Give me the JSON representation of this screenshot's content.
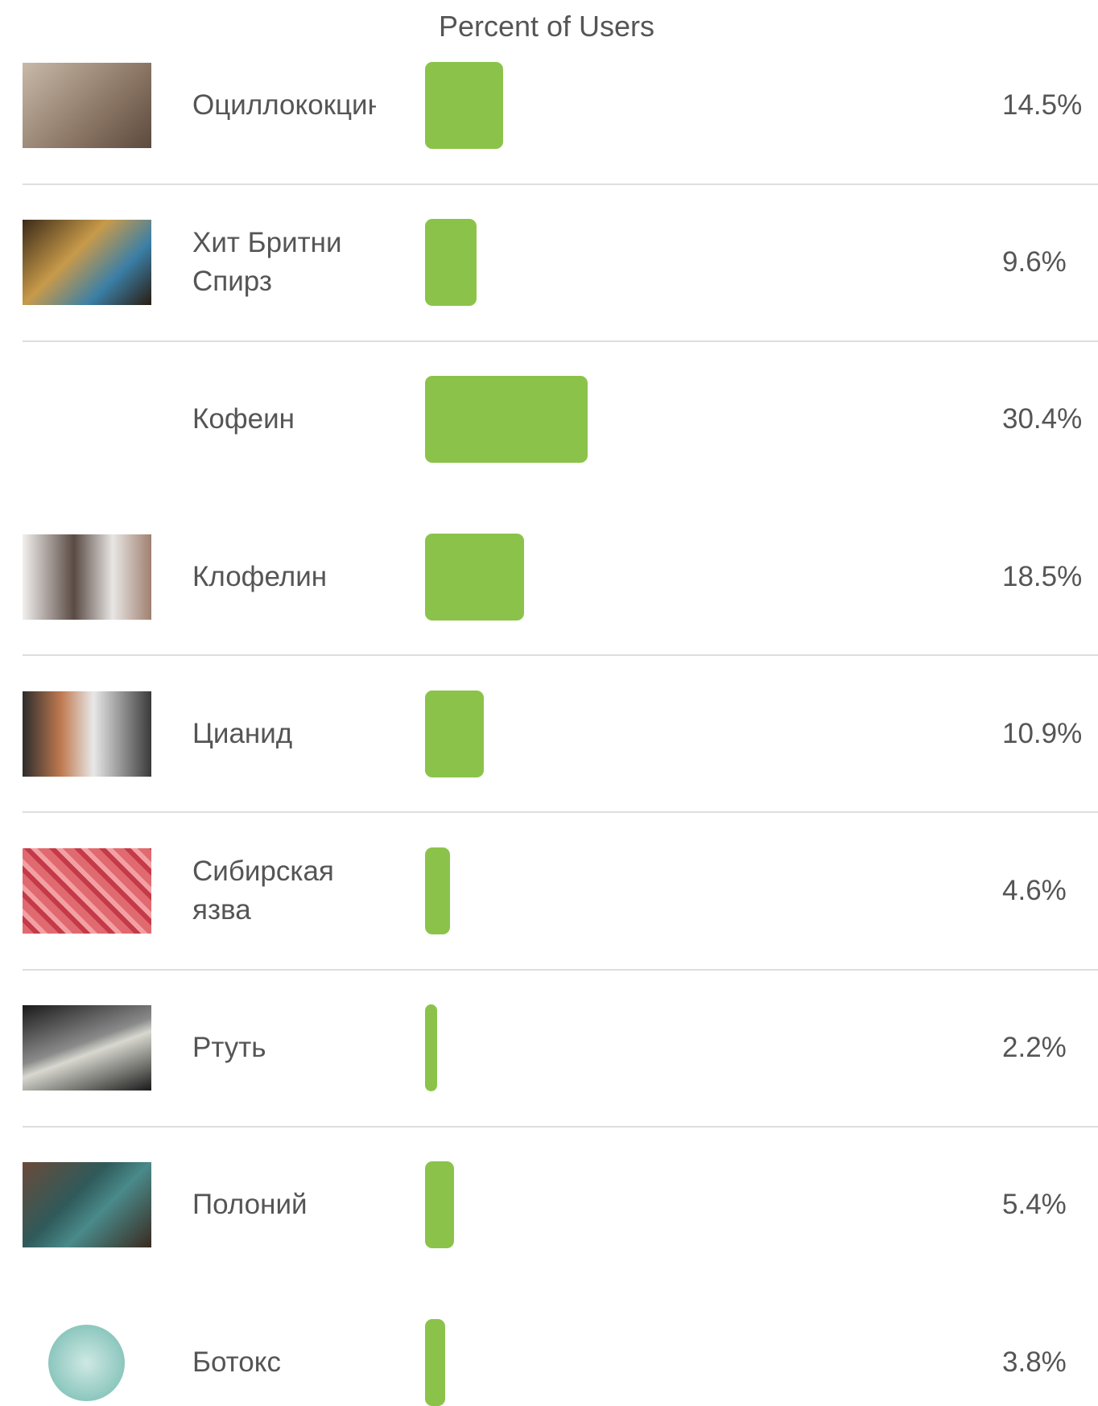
{
  "chart_data": {
    "type": "bar",
    "title": "Percent of Users",
    "categories": [
      "Оциллококцинум",
      "Хит Бритни Спирз",
      "Кофеин",
      "Клофелин",
      "Цианид",
      "Сибирская язва",
      "Ртуть",
      "Полоний",
      "Ботокс"
    ],
    "values": [
      14.5,
      9.6,
      30.4,
      18.5,
      10.9,
      4.6,
      2.2,
      5.4,
      3.8
    ],
    "value_labels": [
      "14.5%",
      "9.6%",
      "30.4%",
      "18.5%",
      "10.9%",
      "4.6%",
      "2.2%",
      "5.4%",
      "3.8%"
    ],
    "color": "#8bc34a",
    "xlim": [
      0,
      100
    ]
  }
}
